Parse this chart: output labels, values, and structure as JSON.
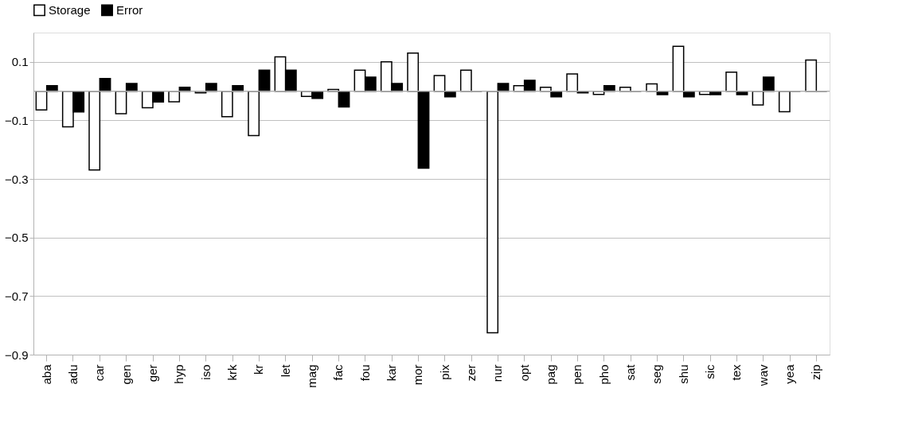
{
  "chart_data": {
    "type": "bar",
    "categories": [
      "aba",
      "adu",
      "car",
      "gen",
      "ger",
      "hyp",
      "iso",
      "krk",
      "kr",
      "let",
      "mag",
      "fac",
      "fou",
      "kar",
      "mor",
      "pix",
      "zer",
      "nur",
      "opt",
      "pag",
      "pen",
      "pho",
      "sat",
      "seg",
      "shu",
      "sic",
      "tex",
      "wav",
      "yea",
      "zip"
    ],
    "series": [
      {
        "name": "Storage",
        "color": "#ffffff",
        "values": [
          -0.064,
          -0.122,
          -0.269,
          -0.077,
          -0.057,
          -0.036,
          -0.006,
          -0.087,
          -0.152,
          0.117,
          -0.018,
          0.006,
          0.072,
          0.1,
          0.13,
          0.053,
          0.072,
          -0.825,
          0.019,
          0.013,
          0.059,
          -0.011,
          0.013,
          0.025,
          0.153,
          -0.011,
          0.065,
          -0.047,
          -0.07,
          0.106
        ]
      },
      {
        "name": "Error",
        "color": "#000000",
        "values": [
          0.019,
          -0.071,
          0.043,
          0.026,
          -0.037,
          0.013,
          0.026,
          0.019,
          0.072,
          0.072,
          -0.025,
          -0.054,
          0.048,
          0.026,
          -0.263,
          -0.019,
          0,
          0.026,
          0.037,
          -0.019,
          -0.006,
          0.019,
          0,
          -0.012,
          -0.019,
          -0.012,
          -0.012,
          0.048,
          0,
          0
        ]
      }
    ],
    "ylim": [
      -0.9,
      0.2
    ],
    "yticks": [
      0.1,
      -0.1,
      -0.3,
      -0.5,
      -0.7,
      -0.9
    ],
    "grid": "y",
    "legend": "top",
    "ref_lines": [
      {
        "axis": "y",
        "value": 0,
        "color": "#b3b3b3"
      }
    ]
  }
}
